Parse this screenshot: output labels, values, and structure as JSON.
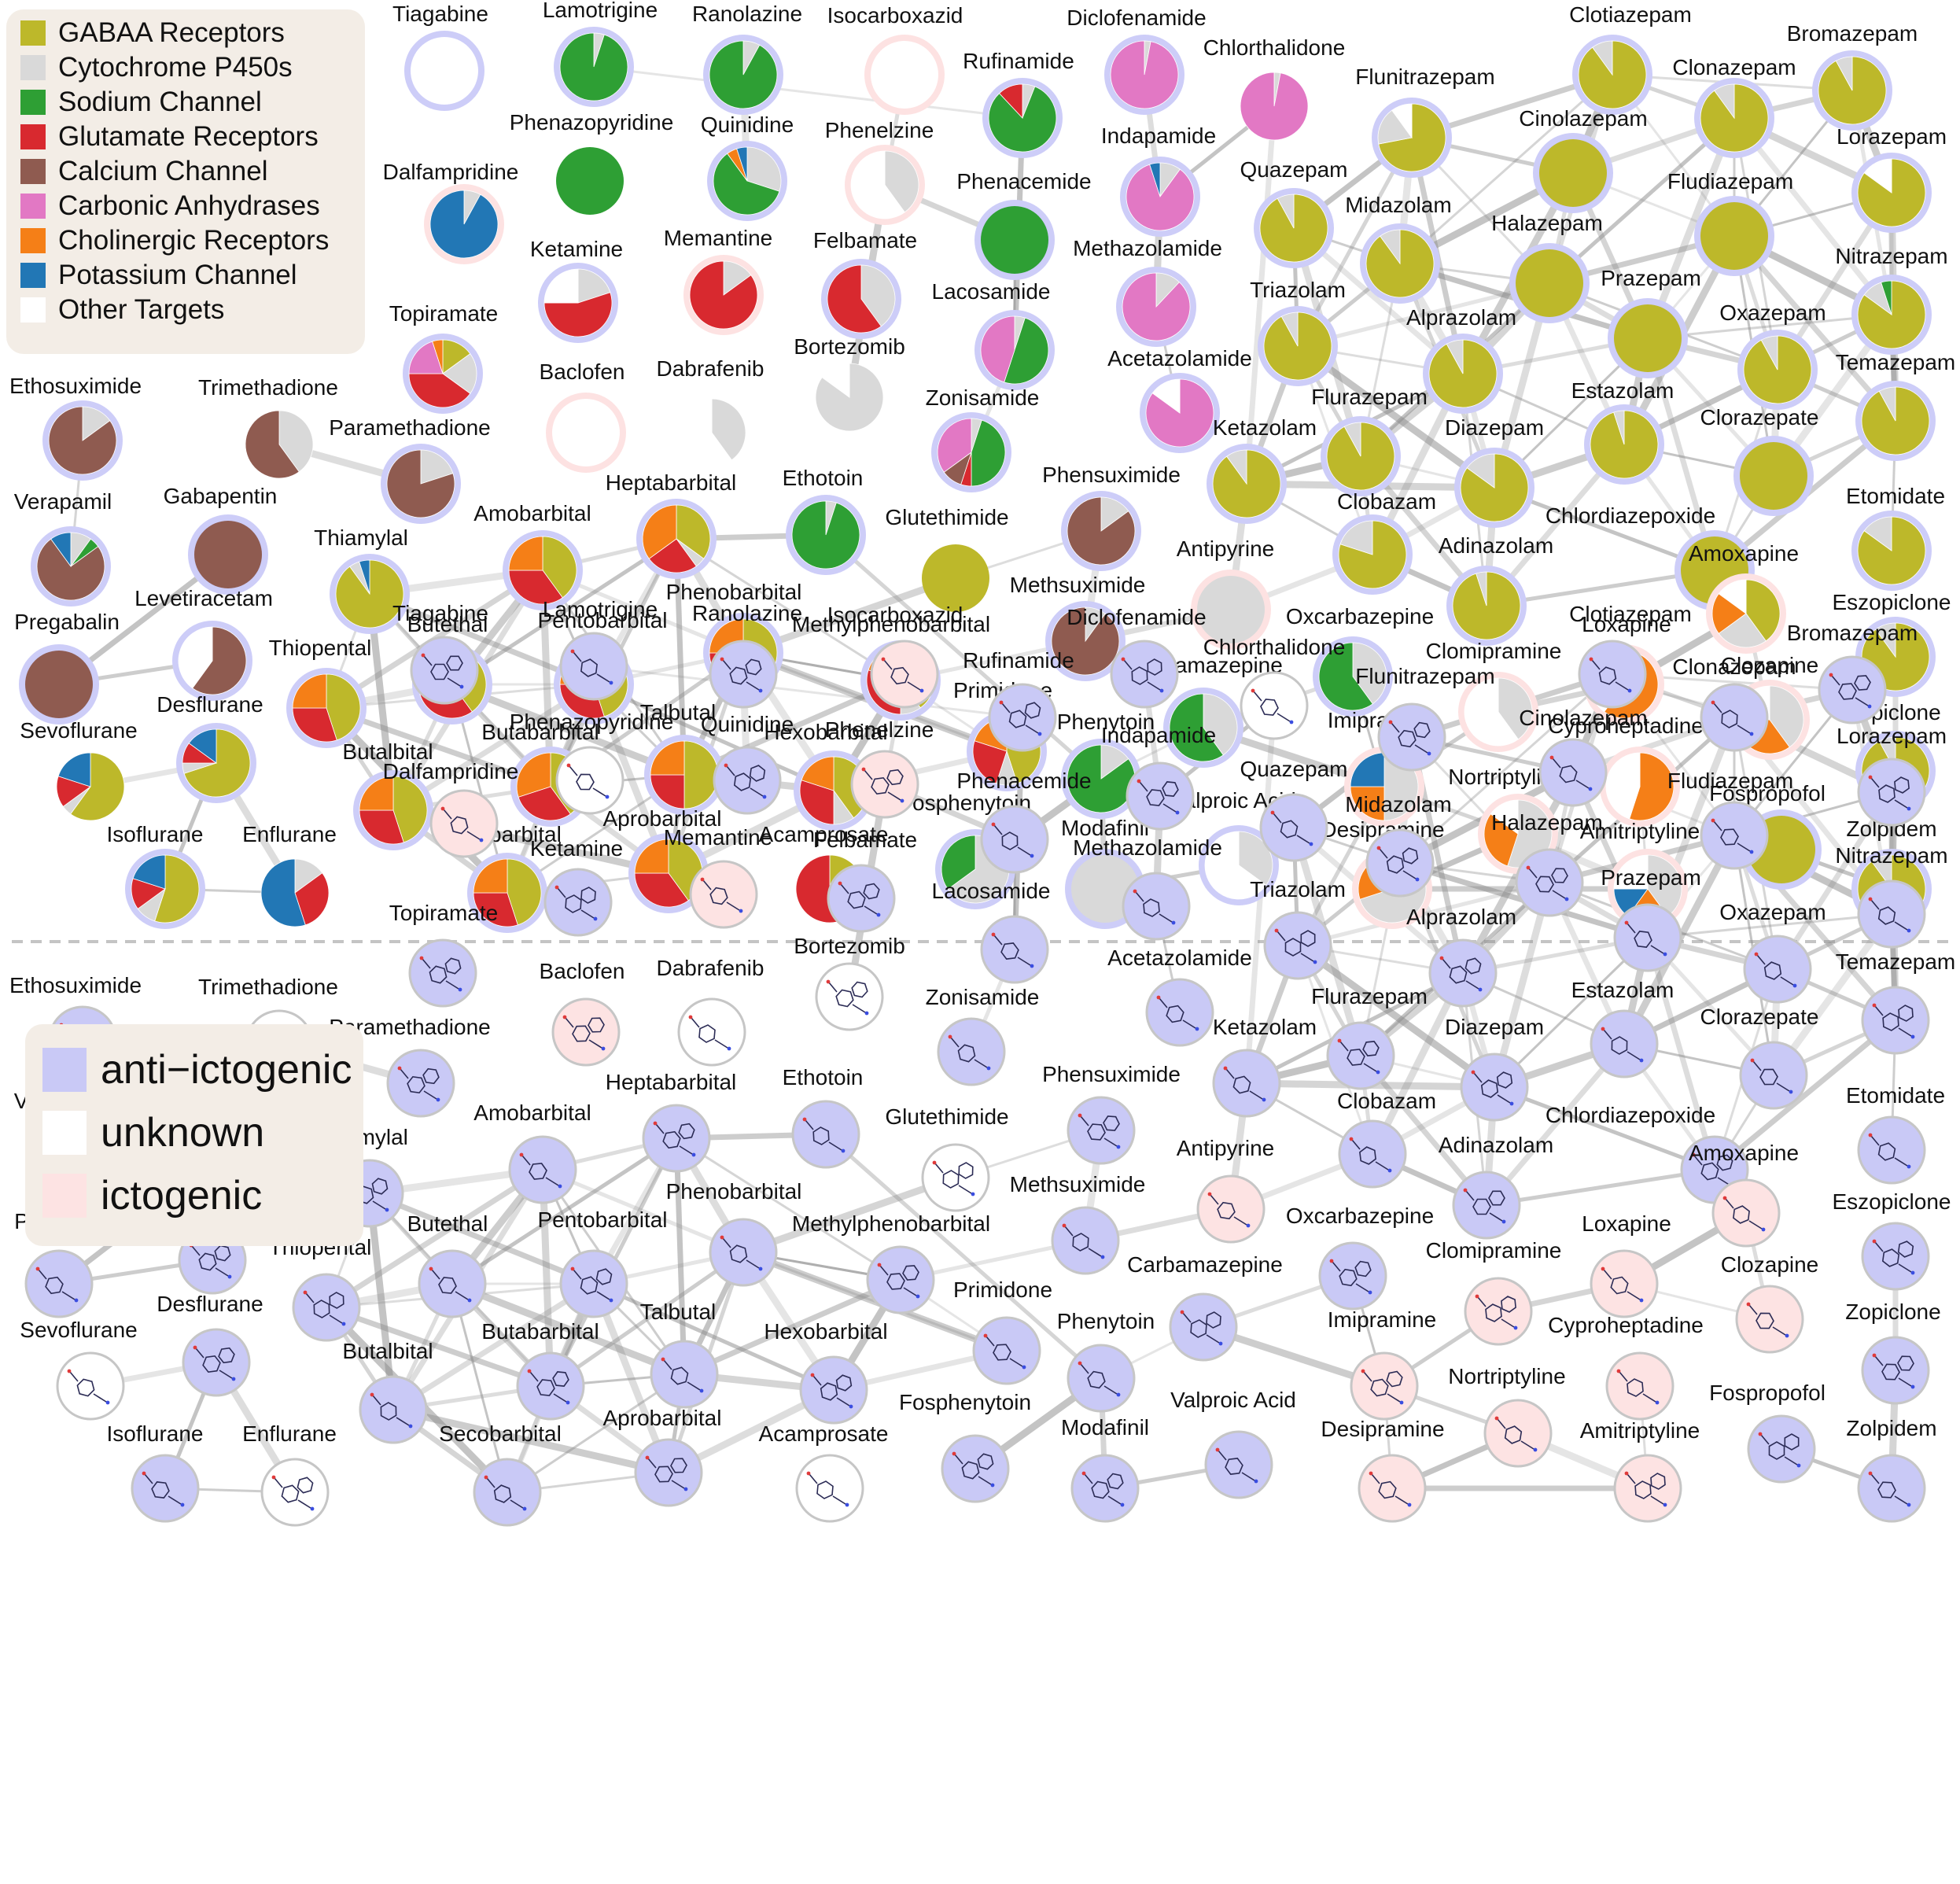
{
  "target_legend": [
    {
      "label": "GABAA Receptors",
      "color": "#bdb82a"
    },
    {
      "label": "Cytochrome P450s",
      "color": "#d9d9d9"
    },
    {
      "label": "Sodium Channel",
      "color": "#2e9f34"
    },
    {
      "label": "Glutamate Receptors",
      "color": "#d8292f"
    },
    {
      "label": "Calcium Channel",
      "color": "#8f5b50"
    },
    {
      "label": "Carbonic Anhydrases",
      "color": "#e278c4"
    },
    {
      "label": "Cholinergic Receptors",
      "color": "#f57f17"
    },
    {
      "label": "Potassium Channel",
      "color": "#2277b5"
    },
    {
      "label": "Other Targets",
      "color": "#ffffff"
    }
  ],
  "class_legend": [
    {
      "label": "anti−ictogenic",
      "key": "anti",
      "color": "#c9c9f6"
    },
    {
      "label": "unknown",
      "key": "unknown",
      "color": "#ffffff"
    },
    {
      "label": "ictogenic",
      "key": "icto",
      "color": "#fde3e3"
    }
  ],
  "drugs": [
    {
      "name": "Tiagabine",
      "class": "anti",
      "pie": {
        "other": 1.0
      }
    },
    {
      "name": "Lamotrigine",
      "class": "anti",
      "pie": {
        "sodium": 0.95,
        "p450": 0.05
      }
    },
    {
      "name": "Ranolazine",
      "class": "anti",
      "pie": {
        "sodium": 0.92,
        "p450": 0.08
      }
    },
    {
      "name": "Isocarboxazid",
      "class": "icto",
      "pie": {
        "other": 1.0
      }
    },
    {
      "name": "Diclofenamide",
      "class": "anti",
      "pie": {
        "carbonic": 0.97,
        "p450": 0.03
      }
    },
    {
      "name": "Chlorthalidone",
      "class": "unknown",
      "pie": {
        "carbonic": 0.97,
        "p450": 0.03
      }
    },
    {
      "name": "Rufinamide",
      "class": "anti",
      "pie": {
        "sodium": 0.82,
        "glutamate": 0.12,
        "p450": 0.06
      }
    },
    {
      "name": "Clotiazepam",
      "class": "anti",
      "pie": {
        "gaba": 0.9,
        "p450": 0.1
      }
    },
    {
      "name": "Bromazepam",
      "class": "anti",
      "pie": {
        "gaba": 0.92,
        "p450": 0.08
      }
    },
    {
      "name": "Clonazepam",
      "class": "anti",
      "pie": {
        "gaba": 0.9,
        "p450": 0.1
      }
    },
    {
      "name": "Flunitrazepam",
      "class": "anti",
      "pie": {
        "gaba": 0.72,
        "p450": 0.18,
        "other": 0.1
      }
    },
    {
      "name": "Cinolazepam",
      "class": "anti",
      "pie": {
        "gaba": 1.0
      }
    },
    {
      "name": "Lorazepam",
      "class": "anti",
      "pie": {
        "gaba": 0.85,
        "other": 0.15
      }
    },
    {
      "name": "Phenazopyridine",
      "class": "unknown",
      "pie": {
        "sodium": 1.0
      }
    },
    {
      "name": "Quinidine",
      "class": "anti",
      "pie": {
        "sodium": 0.6,
        "cholinergic": 0.05,
        "potassium": 0.05,
        "p450": 0.3
      }
    },
    {
      "name": "Dalfampridine",
      "class": "icto",
      "pie": {
        "potassium": 0.92,
        "p450": 0.08
      }
    },
    {
      "name": "Phenelzine",
      "class": "icto",
      "pie": {
        "p450": 0.4,
        "other": 0.6
      }
    },
    {
      "name": "Phenacemide",
      "class": "anti",
      "pie": {
        "sodium": 1.0
      }
    },
    {
      "name": "Indapamide",
      "class": "anti",
      "pie": {
        "carbonic": 0.85,
        "potassium": 0.05,
        "p450": 0.1
      }
    },
    {
      "name": "Quazepam",
      "class": "anti",
      "pie": {
        "gaba": 0.92,
        "p450": 0.08
      }
    },
    {
      "name": "Midazolam",
      "class": "anti",
      "pie": {
        "gaba": 0.9,
        "p450": 0.1
      }
    },
    {
      "name": "Fludiazepam",
      "class": "anti",
      "pie": {
        "gaba": 1.0
      }
    },
    {
      "name": "Ketamine",
      "class": "anti",
      "pie": {
        "glutamate": 0.55,
        "p450": 0.2,
        "other": 0.25
      }
    },
    {
      "name": "Memantine",
      "class": "icto",
      "pie": {
        "glutamate": 0.85,
        "p450": 0.15
      }
    },
    {
      "name": "Felbamate",
      "class": "anti",
      "pie": {
        "glutamate": 0.6,
        "p450": 0.4
      }
    },
    {
      "name": "Methazolamide",
      "class": "anti",
      "pie": {
        "carbonic": 0.88,
        "p450": 0.12
      }
    },
    {
      "name": "Halazepam",
      "class": "anti",
      "pie": {
        "gaba": 1.0
      }
    },
    {
      "name": "Nitrazepam",
      "class": "anti",
      "pie": {
        "gaba": 0.85,
        "sodium": 0.05,
        "p450": 0.1
      }
    },
    {
      "name": "Topiramate",
      "class": "anti",
      "pie": {
        "gaba": 0.15,
        "glutamate": 0.4,
        "carbonic": 0.2,
        "cholinergic": 0.05,
        "p450": 0.2
      }
    },
    {
      "name": "Lacosamide",
      "class": "anti",
      "pie": {
        "sodium": 0.5,
        "carbonic": 0.45,
        "p450": 0.05
      }
    },
    {
      "name": "Triazolam",
      "class": "anti",
      "pie": {
        "gaba": 0.92,
        "p450": 0.08
      }
    },
    {
      "name": "Prazepam",
      "class": "anti",
      "pie": {
        "gaba": 1.0
      }
    },
    {
      "name": "Alprazolam",
      "class": "anti",
      "pie": {
        "gaba": 0.92,
        "p450": 0.08
      }
    },
    {
      "name": "Oxazepam",
      "class": "anti",
      "pie": {
        "gaba": 0.92,
        "p450": 0.08
      }
    },
    {
      "name": "Baclofen",
      "class": "icto",
      "pie": {
        "other": 1.0
      }
    },
    {
      "name": "Dabrafenib",
      "class": "unknown",
      "pie": {
        "p450": 0.4,
        "other": 0.6
      }
    },
    {
      "name": "Bortezomib",
      "class": "unknown",
      "pie": {
        "p450": 0.85,
        "other": 0.15
      }
    },
    {
      "name": "Acetazolamide",
      "class": "anti",
      "pie": {
        "carbonic": 0.85,
        "other": 0.15
      }
    },
    {
      "name": "Temazepam",
      "class": "anti",
      "pie": {
        "gaba": 0.92,
        "p450": 0.08
      }
    },
    {
      "name": "Ethosuximide",
      "class": "anti",
      "pie": {
        "calcium": 0.85,
        "p450": 0.15
      }
    },
    {
      "name": "Trimethadione",
      "class": "unknown",
      "pie": {
        "calcium": 0.6,
        "p450": 0.4
      }
    },
    {
      "name": "Zonisamide",
      "class": "anti",
      "pie": {
        "sodium": 0.45,
        "calcium": 0.1,
        "carbonic": 0.35,
        "glutamate": 0.05,
        "p450": 0.05
      }
    },
    {
      "name": "Flurazepam",
      "class": "anti",
      "pie": {
        "gaba": 0.92,
        "p450": 0.08
      }
    },
    {
      "name": "Estazolam",
      "class": "anti",
      "pie": {
        "gaba": 0.95,
        "p450": 0.05
      }
    },
    {
      "name": "Paramethadione",
      "class": "anti",
      "pie": {
        "calcium": 0.8,
        "p450": 0.2
      }
    },
    {
      "name": "Ketazolam",
      "class": "anti",
      "pie": {
        "gaba": 0.9,
        "p450": 0.1
      }
    },
    {
      "name": "Diazepam",
      "class": "anti",
      "pie": {
        "gaba": 0.85,
        "p450": 0.15
      }
    },
    {
      "name": "Clorazepate",
      "class": "anti",
      "pie": {
        "gaba": 1.0
      }
    },
    {
      "name": "Verapamil",
      "class": "anti",
      "pie": {
        "calcium": 0.75,
        "potassium": 0.1,
        "sodium": 0.05,
        "p450": 0.1
      }
    },
    {
      "name": "Gabapentin",
      "class": "anti",
      "pie": {
        "calcium": 1.0
      }
    },
    {
      "name": "Heptabarbital",
      "class": "anti",
      "pie": {
        "gaba": 0.35,
        "glutamate": 0.25,
        "cholinergic": 0.35,
        "p450": 0.05
      }
    },
    {
      "name": "Ethotoin",
      "class": "anti",
      "pie": {
        "sodium": 0.95,
        "p450": 0.05
      }
    },
    {
      "name": "Phensuximide",
      "class": "anti",
      "pie": {
        "calcium": 0.85,
        "p450": 0.15
      }
    },
    {
      "name": "Etomidate",
      "class": "anti",
      "pie": {
        "gaba": 0.85,
        "p450": 0.15
      }
    },
    {
      "name": "Thiamylal",
      "class": "anti",
      "pie": {
        "gaba": 0.9,
        "potassium": 0.05,
        "p450": 0.05
      }
    },
    {
      "name": "Amobarbital",
      "class": "anti",
      "pie": {
        "gaba": 0.4,
        "glutamate": 0.35,
        "cholinergic": 0.25
      }
    },
    {
      "name": "Glutethimide",
      "class": "unknown",
      "pie": {
        "gaba": 1.0
      }
    },
    {
      "name": "Antipyrine",
      "class": "icto",
      "pie": {
        "p450": 1.0
      }
    },
    {
      "name": "Chlordiazepoxide",
      "class": "anti",
      "pie": {
        "gaba": 1.0
      }
    },
    {
      "name": "Clobazam",
      "class": "anti",
      "pie": {
        "gaba": 0.8,
        "p450": 0.2
      }
    },
    {
      "name": "Adinazolam",
      "class": "anti",
      "pie": {
        "gaba": 0.95,
        "p450": 0.05
      }
    },
    {
      "name": "Amoxapine",
      "class": "icto",
      "pie": {
        "gaba": 0.4,
        "cholinergic": 0.2,
        "p450": 0.25,
        "other": 0.15
      }
    },
    {
      "name": "Levetiracetam",
      "class": "anti",
      "pie": {
        "calcium": 0.6,
        "other": 0.4
      }
    },
    {
      "name": "Pregabalin",
      "class": "anti",
      "pie": {
        "calcium": 1.0
      }
    },
    {
      "name": "Thiopental",
      "class": "anti",
      "pie": {
        "gaba": 0.45,
        "glutamate": 0.3,
        "cholinergic": 0.25
      }
    },
    {
      "name": "Butethal",
      "class": "anti",
      "pie": {
        "gaba": 0.4,
        "glutamate": 0.3,
        "cholinergic": 0.3
      }
    },
    {
      "name": "Pentobarbital",
      "class": "anti",
      "pie": {
        "gaba": 0.45,
        "glutamate": 0.3,
        "cholinergic": 0.25
      }
    },
    {
      "name": "Phenobarbital",
      "class": "anti",
      "pie": {
        "gaba": 0.3,
        "glutamate": 0.25,
        "cholinergic": 0.25,
        "p450": 0.2
      }
    },
    {
      "name": "Methylphenobarbital",
      "class": "anti",
      "pie": {
        "gaba": 0.4,
        "glutamate": 0.3,
        "cholinergic": 0.2,
        "p450": 0.1
      }
    },
    {
      "name": "Methsuximide",
      "class": "anti",
      "pie": {
        "calcium": 0.9,
        "p450": 0.1
      }
    },
    {
      "name": "Oxcarbazepine",
      "class": "anti",
      "pie": {
        "sodium": 0.6,
        "p450": 0.4
      }
    },
    {
      "name": "Loxapine",
      "class": "icto",
      "pie": {
        "cholinergic": 0.6,
        "other": 0.4
      }
    },
    {
      "name": "Clomipramine",
      "class": "icto",
      "pie": {
        "p450": 0.4,
        "other": 0.6
      }
    },
    {
      "name": "Clozapine",
      "class": "icto",
      "pie": {
        "cholinergic": 0.35,
        "p450": 0.4,
        "other": 0.25
      }
    },
    {
      "name": "Eszopiclone",
      "class": "anti",
      "pie": {
        "gaba": 0.9,
        "p450": 0.1
      }
    },
    {
      "name": "Sevoflurane",
      "class": "unknown",
      "pie": {
        "gaba": 0.6,
        "p450": 0.05,
        "glutamate": 0.15,
        "potassium": 0.2
      }
    },
    {
      "name": "Desflurane",
      "class": "anti",
      "pie": {
        "gaba": 0.7,
        "potassium": 0.15,
        "glutamate": 0.1,
        "p450": 0.05
      }
    },
    {
      "name": "Butalbital",
      "class": "anti",
      "pie": {
        "gaba": 0.45,
        "glutamate": 0.3,
        "cholinergic": 0.25
      }
    },
    {
      "name": "Butabarbital",
      "class": "anti",
      "pie": {
        "gaba": 0.4,
        "glutamate": 0.3,
        "cholinergic": 0.3
      }
    },
    {
      "name": "Talbutal",
      "class": "anti",
      "pie": {
        "gaba": 0.5,
        "glutamate": 0.25,
        "cholinergic": 0.25
      }
    },
    {
      "name": "Hexobarbital",
      "class": "anti",
      "pie": {
        "gaba": 0.4,
        "glutamate": 0.3,
        "cholinergic": 0.2,
        "p450": 0.1
      }
    },
    {
      "name": "Primidone",
      "class": "anti",
      "pie": {
        "gaba": 0.45,
        "glutamate": 0.25,
        "cholinergic": 0.2,
        "p450": 0.1
      }
    },
    {
      "name": "Carbamazepine",
      "class": "anti",
      "pie": {
        "sodium": 0.6,
        "p450": 0.4
      }
    },
    {
      "name": "Phenytoin",
      "class": "anti",
      "pie": {
        "sodium": 0.85,
        "p450": 0.15
      }
    },
    {
      "name": "Imipramine",
      "class": "icto",
      "pie": {
        "potassium": 0.25,
        "cholinergic": 0.25,
        "p450": 0.5
      }
    },
    {
      "name": "Cyproheptadine",
      "class": "icto",
      "pie": {
        "cholinergic": 0.55,
        "other": 0.45
      }
    },
    {
      "name": "Zopiclone",
      "class": "anti",
      "pie": {
        "gaba": 0.92,
        "p450": 0.08
      }
    },
    {
      "name": "Nortriptyline",
      "class": "icto",
      "pie": {
        "cholinergic": 0.3,
        "p450": 0.55,
        "other": 0.15
      }
    },
    {
      "name": "Fosphenytoin",
      "class": "anti",
      "pie": {
        "sodium": 0.35,
        "p450": 0.65
      }
    },
    {
      "name": "Valproic Acid",
      "class": "anti",
      "pie": {
        "p450": 0.35,
        "other": 0.65
      }
    },
    {
      "name": "Fospropofol",
      "class": "anti",
      "pie": {
        "gaba": 1.0
      }
    },
    {
      "name": "Isoflurane",
      "class": "anti",
      "pie": {
        "gaba": 0.55,
        "glutamate": 0.15,
        "potassium": 0.2,
        "p450": 0.1
      }
    },
    {
      "name": "Enflurane",
      "class": "unknown",
      "pie": {
        "potassium": 0.55,
        "glutamate": 0.3,
        "p450": 0.15
      }
    },
    {
      "name": "Secobarbital",
      "class": "anti",
      "pie": {
        "gaba": 0.45,
        "glutamate": 0.3,
        "cholinergic": 0.25
      }
    },
    {
      "name": "Aprobarbital",
      "class": "anti",
      "pie": {
        "gaba": 0.4,
        "glutamate": 0.35,
        "cholinergic": 0.25
      }
    },
    {
      "name": "Acamprosate",
      "class": "unknown",
      "pie": {
        "gaba": 0.2,
        "glutamate": 0.8
      }
    },
    {
      "name": "Modafinil",
      "class": "anti",
      "pie": {
        "p450": 1.0
      }
    },
    {
      "name": "Desipramine",
      "class": "icto",
      "pie": {
        "cholinergic": 0.3,
        "p450": 0.7
      }
    },
    {
      "name": "Amitriptyline",
      "class": "icto",
      "pie": {
        "potassium": 0.15,
        "cholinergic": 0.2,
        "p450": 0.4,
        "other": 0.25
      }
    },
    {
      "name": "Zolpidem",
      "class": "anti",
      "pie": {
        "gaba": 0.9,
        "p450": 0.1
      }
    }
  ]
}
